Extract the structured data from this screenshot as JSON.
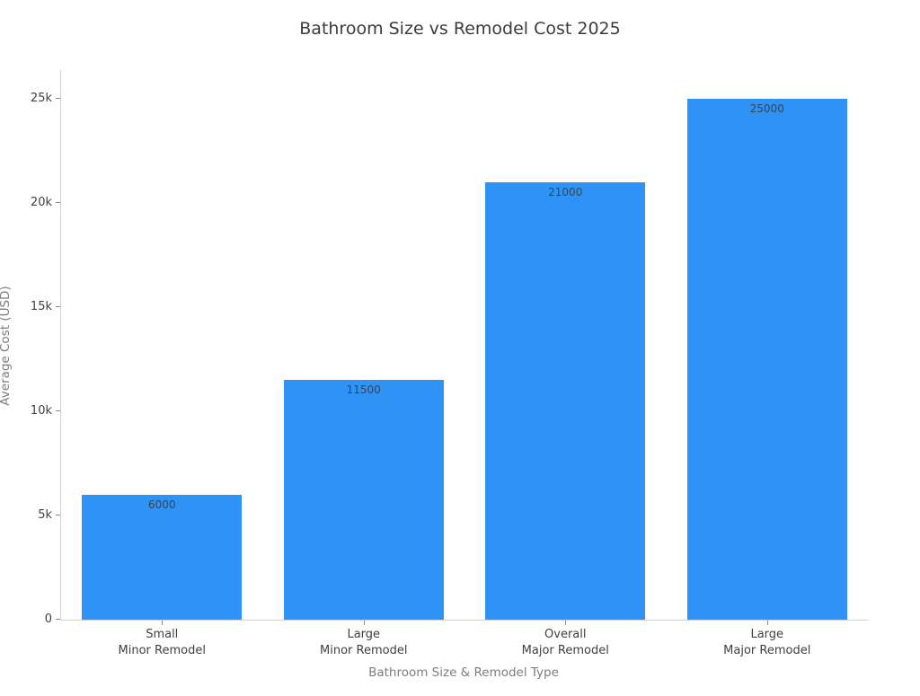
{
  "title": "Bathroom Size vs Remodel Cost 2025",
  "colors": {
    "background": "#ffffff",
    "bar": "#2f93f5",
    "title_text": "#3c3c3c",
    "tick_label_text": "#3f3f3f",
    "axis_title_text": "#7d7d7d",
    "axis_line": "#d0d0d0",
    "tick_mark": "#8a8a8a",
    "bar_value_text": "#39454e"
  },
  "chart_data": {
    "type": "bar",
    "title": "Bathroom Size vs Remodel Cost 2025",
    "xlabel": "Bathroom Size & Remodel Type",
    "ylabel": "Average Cost (USD)",
    "categories": [
      [
        "Small",
        "Minor Remodel"
      ],
      [
        "Large",
        "Minor Remodel"
      ],
      [
        "Overall",
        "Major Remodel"
      ],
      [
        "Large",
        "Major Remodel"
      ]
    ],
    "values": [
      6000,
      11500,
      21000,
      25000
    ],
    "bar_value_labels": [
      "6000",
      "11500",
      "21000",
      "25000"
    ],
    "yticks": [
      {
        "value": 0,
        "label": "0"
      },
      {
        "value": 5000,
        "label": "5k"
      },
      {
        "value": 10000,
        "label": "10k"
      },
      {
        "value": 15000,
        "label": "15k"
      },
      {
        "value": 20000,
        "label": "20k"
      },
      {
        "value": 25000,
        "label": "25k"
      }
    ],
    "ylim": [
      0,
      25000
    ],
    "grid": false,
    "legend": "none",
    "bar_color": "#2f93f5"
  }
}
